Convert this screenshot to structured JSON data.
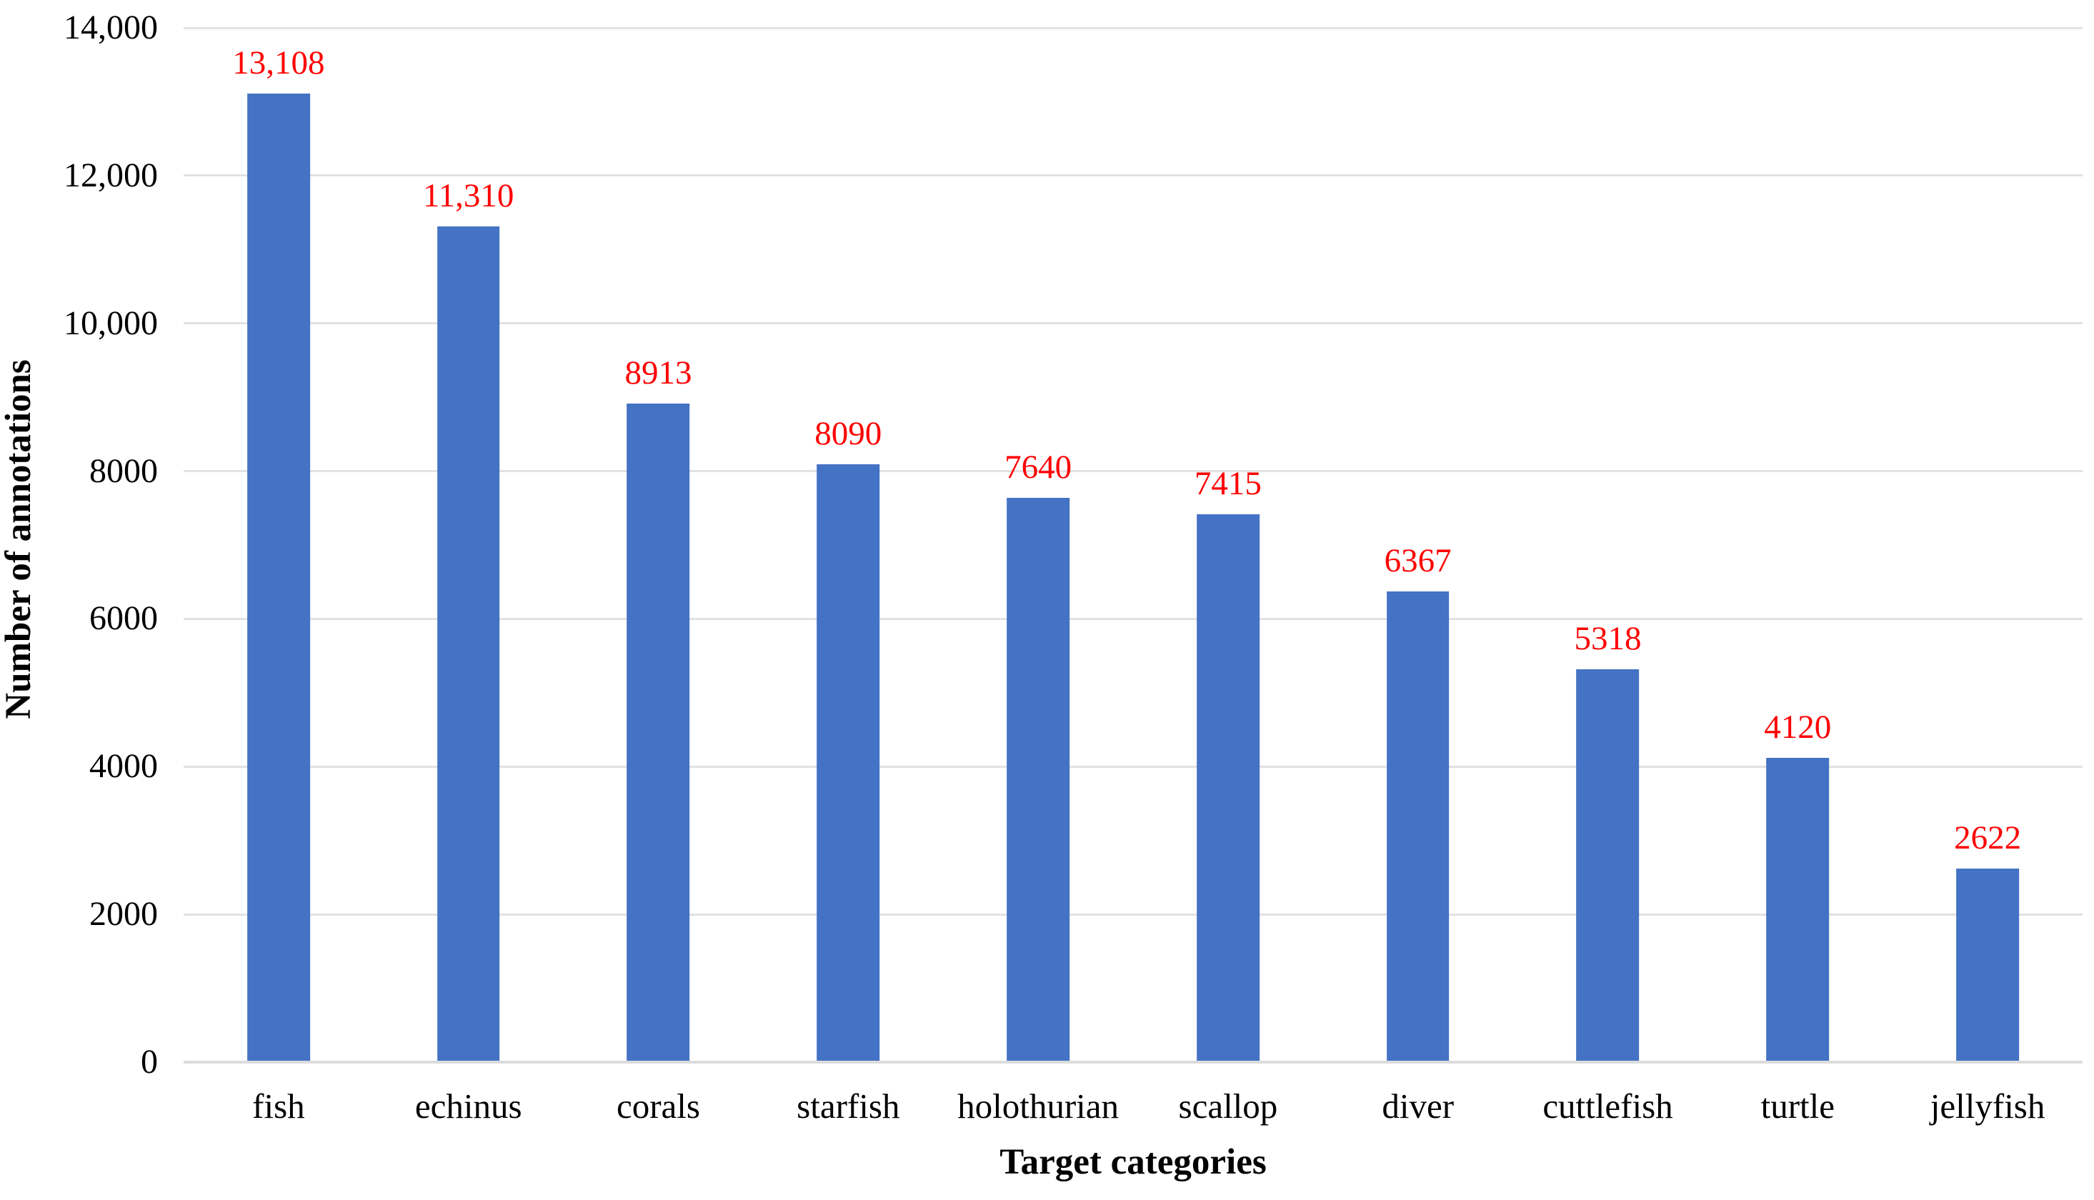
{
  "chart_data": {
    "type": "bar",
    "title": "",
    "xlabel": "Target categories",
    "ylabel": "Number of annotations",
    "categories": [
      "fish",
      "echinus",
      "corals",
      "starfish",
      "holothurian",
      "scallop",
      "diver",
      "cuttlefish",
      "turtle",
      "jellyfish"
    ],
    "values": [
      13108,
      11310,
      8913,
      8090,
      7640,
      7415,
      6367,
      5318,
      4120,
      2622
    ],
    "value_labels": [
      "13,108",
      "11,310",
      "8913",
      "8090",
      "7640",
      "7415",
      "6367",
      "5318",
      "4120",
      "2622"
    ],
    "ylim": [
      0,
      14000
    ],
    "ytick_interval": 2000,
    "yticks": [
      {
        "value": 0,
        "label": "0"
      },
      {
        "value": 2000,
        "label": "2000"
      },
      {
        "value": 4000,
        "label": "4000"
      },
      {
        "value": 6000,
        "label": "6000"
      },
      {
        "value": 8000,
        "label": "8000"
      },
      {
        "value": 10000,
        "label": "10,000"
      },
      {
        "value": 12000,
        "label": "12,000"
      },
      {
        "value": 14000,
        "label": "14,000"
      }
    ],
    "grid": "horizontal",
    "legend": "none",
    "colors": {
      "bar": "#4472C4",
      "value_label": "#FF0000",
      "gridline": "#E2E2E2",
      "axis_line": "#DCDCDC",
      "text": "#000000",
      "background": "#FFFFFF"
    }
  }
}
